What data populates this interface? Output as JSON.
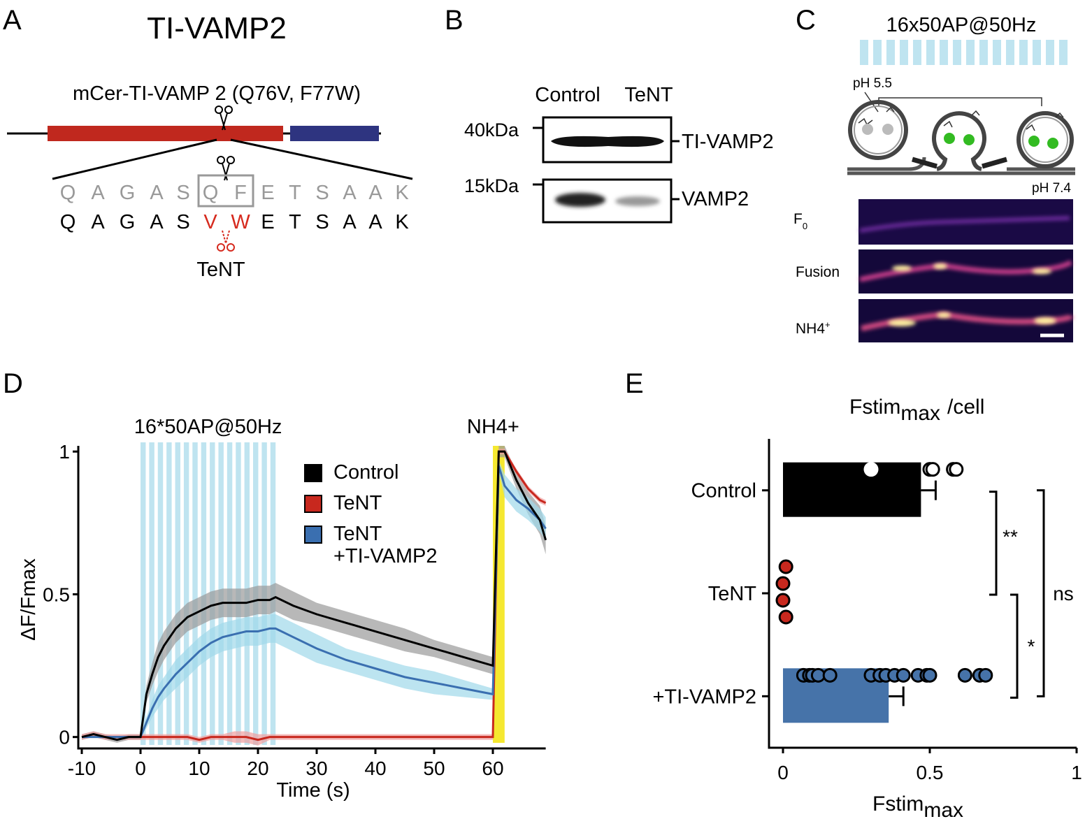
{
  "panels": {
    "A": {
      "letter": "A",
      "title": "TI-VAMP2",
      "construct": "mCer-TI-VAMP 2 (Q76V, F77W)",
      "seq_wt": [
        "Q",
        "A",
        "G",
        "A",
        "S",
        "Q",
        "F",
        "E",
        "T",
        "S",
        "A",
        "A",
        "K"
      ],
      "seq_mut": [
        "Q",
        "A",
        "G",
        "A",
        "S",
        "V",
        "W",
        "E",
        "T",
        "S",
        "A",
        "A",
        "K"
      ],
      "toxin": "TeNT"
    },
    "B": {
      "letter": "B",
      "lanes": [
        "Control",
        "TeNT"
      ],
      "markers": [
        "40kDa",
        "15kDa"
      ],
      "blots": [
        "TI-VAMP2",
        "VAMP2"
      ]
    },
    "C": {
      "letter": "C",
      "stimulus": "16x50AP@50Hz",
      "ph_in": "pH 5.5",
      "ph_out": "pH 7.4",
      "rows": [
        {
          "main": "F",
          "sub": "0"
        },
        {
          "main": "Fusion"
        },
        {
          "main": "NH4",
          "sup": "+"
        }
      ]
    },
    "D": {
      "letter": "D"
    },
    "E": {
      "letter": "E"
    }
  },
  "chart_data": [
    {
      "type": "line",
      "xlabel": "Time (s)",
      "ylabel": "ΔF/Fmax",
      "xlim": [
        -10,
        69
      ],
      "ylim": [
        -0.04,
        1.02
      ],
      "xticks": [
        -10,
        0,
        10,
        20,
        30,
        40,
        50,
        60
      ],
      "yticks": [
        0,
        0.5,
        1
      ],
      "legend": "upper right",
      "stimulus": {
        "label": "16*50AP@50Hz",
        "start": 0,
        "end": 23,
        "count": 16,
        "color": "#bfe4f0"
      },
      "nh4": {
        "label": "NH4+",
        "start": 60,
        "end": 62,
        "color": "#f5e830"
      },
      "x": [
        -10,
        -8,
        -6,
        -4,
        -2,
        0,
        1,
        2,
        3,
        4,
        6,
        8,
        10,
        12,
        14,
        16,
        18,
        20,
        22,
        23,
        26,
        30,
        35,
        40,
        45,
        50,
        55,
        60,
        61,
        62,
        64,
        66,
        68,
        69
      ],
      "series": [
        {
          "name": "Control",
          "color": "#000000",
          "band": "#9a9a9a",
          "values": [
            0,
            0.01,
            0,
            -0.01,
            0,
            0,
            0.15,
            0.22,
            0.28,
            0.32,
            0.38,
            0.42,
            0.44,
            0.46,
            0.47,
            0.47,
            0.47,
            0.48,
            0.48,
            0.49,
            0.46,
            0.43,
            0.4,
            0.37,
            0.34,
            0.31,
            0.28,
            0.25,
            1.0,
            1.0,
            0.9,
            0.82,
            0.76,
            0.69
          ],
          "error": [
            0.01,
            0.01,
            0.01,
            0.01,
            0.01,
            0.01,
            0.03,
            0.04,
            0.05,
            0.05,
            0.05,
            0.05,
            0.05,
            0.05,
            0.05,
            0.05,
            0.05,
            0.05,
            0.05,
            0.05,
            0.05,
            0.04,
            0.04,
            0.04,
            0.04,
            0.03,
            0.03,
            0.03,
            0.02,
            0.02,
            0.03,
            0.04,
            0.05,
            0.05
          ]
        },
        {
          "name": "TeNT",
          "color": "#c8281e",
          "band": "#f0a0a0",
          "values": [
            0,
            0.01,
            0,
            0,
            0,
            0,
            0,
            0,
            0,
            0,
            0,
            0,
            -0.01,
            0,
            0,
            0,
            0,
            -0.01,
            0,
            0,
            0,
            0,
            0,
            0,
            0,
            0,
            0,
            0,
            1.0,
            1.0,
            0.93,
            0.87,
            0.83,
            0.82
          ],
          "error": [
            0.01,
            0.01,
            0.01,
            0.01,
            0.01,
            0.01,
            0.01,
            0.01,
            0.01,
            0.01,
            0.01,
            0.01,
            0.01,
            0.01,
            0.01,
            0.02,
            0.02,
            0.02,
            0.01,
            0.01,
            0.01,
            0.01,
            0.01,
            0.01,
            0.01,
            0.01,
            0.01,
            0.01,
            0.01,
            0.01,
            0.01,
            0.01,
            0.01,
            0.01
          ]
        },
        {
          "name": "TeNT\n+TI-VAMP2",
          "color": "#3a6fb0",
          "band": "#9fd8ea",
          "values": [
            0,
            0,
            0,
            0,
            0,
            0,
            0.05,
            0.1,
            0.14,
            0.17,
            0.22,
            0.26,
            0.3,
            0.33,
            0.35,
            0.36,
            0.37,
            0.37,
            0.38,
            0.38,
            0.35,
            0.31,
            0.27,
            0.24,
            0.21,
            0.19,
            0.17,
            0.15,
            0.95,
            0.88,
            0.83,
            0.8,
            0.76,
            0.73
          ],
          "error": [
            0,
            0,
            0,
            0,
            0,
            0,
            0.02,
            0.03,
            0.04,
            0.04,
            0.05,
            0.05,
            0.05,
            0.05,
            0.05,
            0.05,
            0.05,
            0.05,
            0.05,
            0.05,
            0.05,
            0.05,
            0.04,
            0.04,
            0.04,
            0.04,
            0.03,
            0.02,
            0.02,
            0.04,
            0.04,
            0.04,
            0.04,
            0.04
          ]
        }
      ]
    },
    {
      "type": "hbar",
      "title": {
        "main": "Fstim",
        "sub": "max",
        "tail": "/cell"
      },
      "xlabel": {
        "main": "Fstim",
        "sub": "max"
      },
      "xlim": [
        -0.05,
        1
      ],
      "xticks": [
        0,
        0.5,
        1
      ],
      "categories": [
        "Control",
        "TeNT",
        "+TI-VAMP2"
      ],
      "colors": [
        "#000000",
        "#c8281e",
        "#4673a9"
      ],
      "values": [
        0.47,
        0,
        0.36
      ],
      "errors": [
        0.05,
        0,
        0.05
      ],
      "points": [
        [
          0.3,
          0.5,
          0.51,
          0.58,
          0.59
        ],
        [
          0.01,
          0,
          0,
          0.01
        ],
        [
          0.07,
          0.09,
          0.1,
          0.12,
          0.16,
          0.3,
          0.33,
          0.35,
          0.38,
          0.41,
          0.46,
          0.49,
          0.5,
          0.62,
          0.67,
          0.69
        ]
      ],
      "significance": [
        {
          "label": "**",
          "pair": [
            0,
            1
          ]
        },
        {
          "label": "*",
          "pair": [
            1,
            2
          ]
        },
        {
          "label": "ns",
          "pair": [
            0,
            2
          ]
        }
      ]
    }
  ]
}
